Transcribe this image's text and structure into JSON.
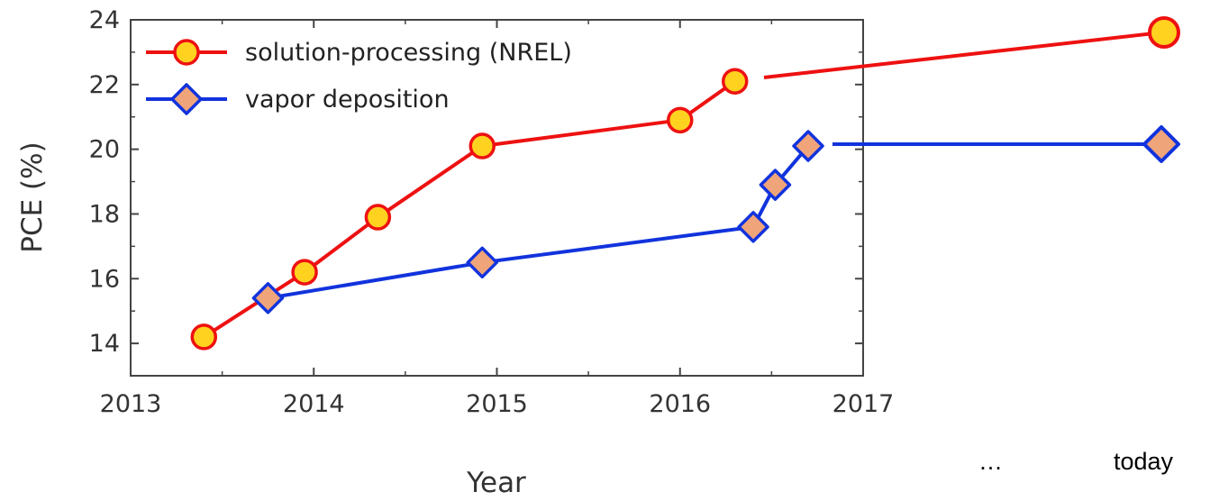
{
  "chart_data": {
    "type": "line",
    "xlabel": "Year",
    "ylabel": "PCE (%)",
    "xlim": [
      2013,
      2017
    ],
    "ylim": [
      13,
      24
    ],
    "x_ticks": [
      2013,
      2014,
      2015,
      2016,
      2017
    ],
    "y_ticks": [
      14,
      16,
      18,
      20,
      22,
      24
    ],
    "legend_position": "top-left",
    "grid": false,
    "series": [
      {
        "name": "solution-processing (NREL)",
        "marker": "circle",
        "line_color": "#ee1111",
        "marker_fill": "#ffd21f",
        "x": [
          2013.4,
          2013.95,
          2014.35,
          2014.92,
          2016.0,
          2016.3
        ],
        "y": [
          14.2,
          16.2,
          17.9,
          20.1,
          20.9,
          22.1
        ]
      },
      {
        "name": "vapor deposition",
        "marker": "diamond",
        "line_color": "#1133dd",
        "marker_fill": "#f0a47a",
        "x": [
          2013.75,
          2014.92,
          2016.4,
          2016.52,
          2016.7
        ],
        "y": [
          15.4,
          16.5,
          17.6,
          18.9,
          20.1
        ]
      }
    ]
  },
  "extension": {
    "ellipsis": "…",
    "today_label": "today"
  }
}
